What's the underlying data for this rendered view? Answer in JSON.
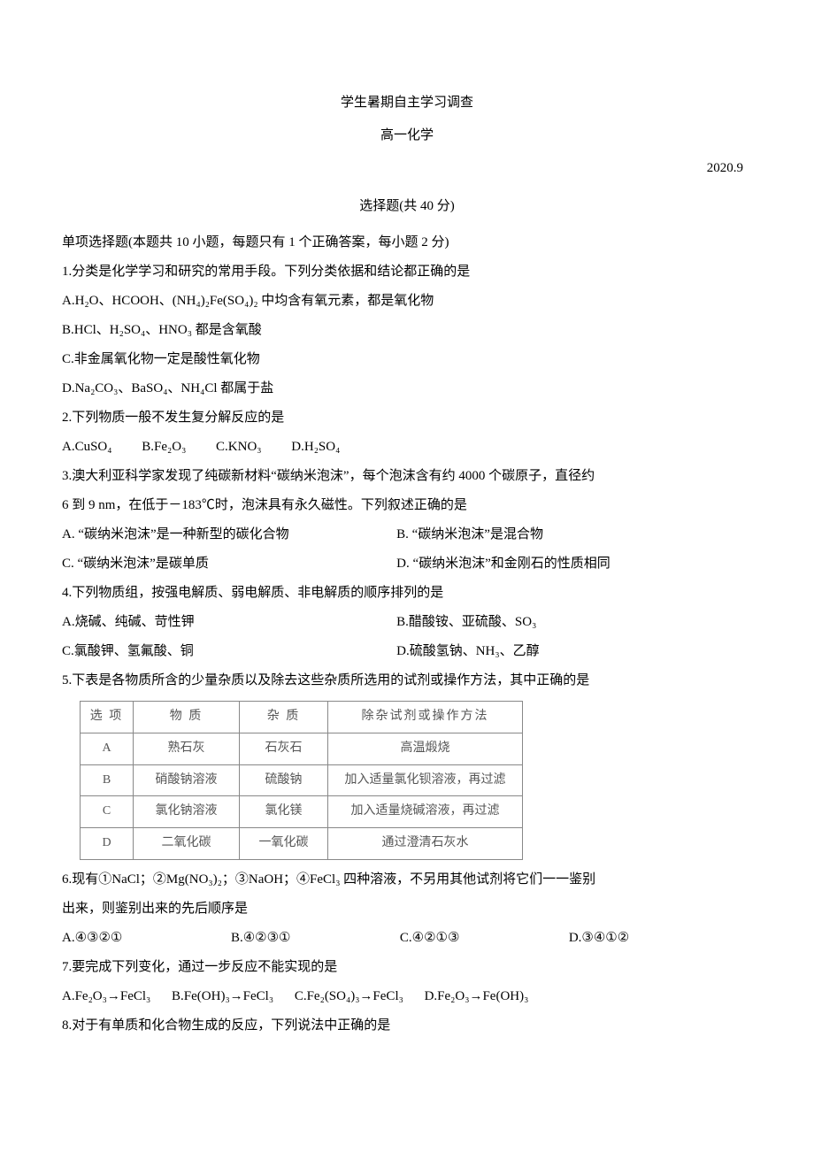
{
  "header": {
    "title1": "学生暑期自主学习调查",
    "title2": "高一化学",
    "date": "2020.9",
    "section": "选择题(共 40 分)"
  },
  "intro": "单项选择题(本题共 10 小题，每题只有 1 个正确答案，每小题 2 分)",
  "q1": {
    "stem": "1.分类是化学学习和研究的常用手段。下列分类依据和结论都正确的是",
    "a": "A.H₂O、HCOOH、(NH₄)₂Fe(SO₄)₂ 中均含有氧元素，都是氧化物",
    "b": "B.HCl、H₂SO₄、HNO₃ 都是含氧酸",
    "c": "C.非金属氧化物一定是酸性氧化物",
    "d": "D.Na₂CO₃、BaSO₄、NH₄Cl 都属于盐"
  },
  "q2": {
    "stem": "2.下列物质一般不发生复分解反应的是",
    "a": "A.CuSO₄",
    "b": "B.Fe₂O₃",
    "c": "C.KNO₃",
    "d": "D.H₂SO₄"
  },
  "q3": {
    "stem1": "3.澳大利亚科学家发现了纯碳新材料“碳纳米泡沫”，每个泡沫含有约 4000 个碳原子，直径约",
    "stem2": "6 到 9 nm，在低于－183℃时，泡沫具有永久磁性。下列叙述正确的是",
    "a": "A. “碳纳米泡沫”是一种新型的碳化合物",
    "b": "B. “碳纳米泡沫”是混合物",
    "c": "C. “碳纳米泡沫”是碳单质",
    "d": "D. “碳纳米泡沫”和金刚石的性质相同"
  },
  "q4": {
    "stem": "4.下列物质组，按强电解质、弱电解质、非电解质的顺序排列的是",
    "a": "A.烧碱、纯碱、苛性钾",
    "b": "B.醋酸铵、亚硫酸、SO₃",
    "c": "C.氯酸钾、氢氟酸、铜",
    "d": "D.硫酸氢钠、NH₃、乙醇"
  },
  "q5": {
    "stem": "5.下表是各物质所含的少量杂质以及除去这些杂质所选用的试剂或操作方法，其中正确的是",
    "table": {
      "headers": [
        "选  项",
        "物    质",
        "杂    质",
        "除杂试剂或操作方法"
      ],
      "rows": [
        [
          "A",
          "熟石灰",
          "石灰石",
          "高温煅烧"
        ],
        [
          "B",
          "硝酸钠溶液",
          "硫酸钠",
          "加入适量氯化钡溶液，再过滤"
        ],
        [
          "C",
          "氯化钠溶液",
          "氯化镁",
          "加入适量烧碱溶液，再过滤"
        ],
        [
          "D",
          "二氧化碳",
          "一氧化碳",
          "通过澄清石灰水"
        ]
      ],
      "col_widths": [
        "60px",
        "120px",
        "100px",
        "220px"
      ]
    }
  },
  "q6": {
    "stem1": "6.现有①NaCl；②Mg(NO₃)₂；③NaOH；④FeCl₃ 四种溶液，不另用其他试剂将它们一一鉴别",
    "stem2": "出来，则鉴别出来的先后顺序是",
    "a": "A.④③②①",
    "b": "B.④②③①",
    "c": "C.④②①③",
    "d": "D.③④①②"
  },
  "q7": {
    "stem": "7.要完成下列变化，通过一步反应不能实现的是",
    "a": "A.Fe₂O₃→FeCl₃",
    "b": "B.Fe(OH)₃→FeCl₃",
    "c": "C.Fe₂(SO₄)₃→FeCl₃",
    "d": "D.Fe₂O₃→Fe(OH)₃"
  },
  "q8": {
    "stem": "8.对于有单质和化合物生成的反应，下列说法中正确的是"
  },
  "colors": {
    "text": "#000000",
    "table_border": "#888888",
    "table_text": "#555555",
    "background": "#ffffff"
  }
}
